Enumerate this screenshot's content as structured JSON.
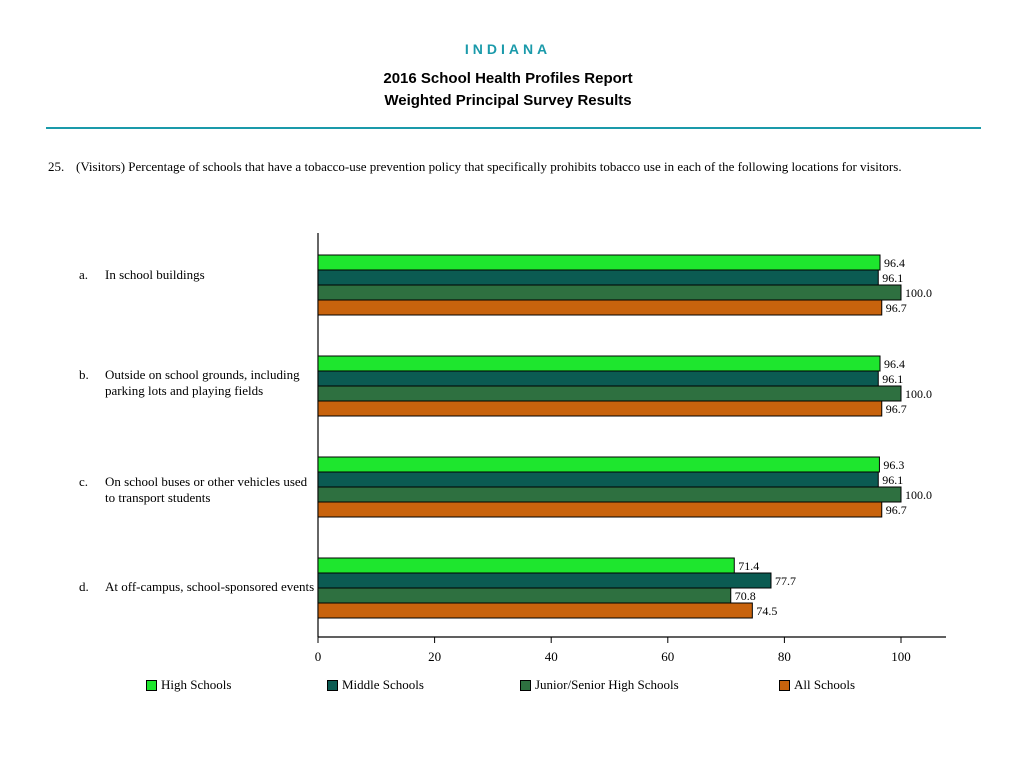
{
  "header": {
    "state": "INDIANA",
    "title_line1": "2016 School Health Profiles Report",
    "title_line2": "Weighted Principal Survey Results"
  },
  "question": {
    "number": "25.",
    "text": "(Visitors) Percentage of schools that have a tobacco-use prevention policy that specifically prohibits tobacco use in each of the following locations for visitors."
  },
  "chart_data": {
    "type": "bar",
    "orientation": "horizontal",
    "categories": [
      {
        "letter": "a.",
        "label": "In school buildings"
      },
      {
        "letter": "b.",
        "label": "Outside on school grounds, including parking lots and playing fields"
      },
      {
        "letter": "c.",
        "label": "On school buses or other vehicles used to transport students"
      },
      {
        "letter": "d.",
        "label": "At off-campus, school-sponsored events"
      }
    ],
    "series": [
      {
        "name": "High Schools",
        "color": "#1ee62e",
        "values": [
          96.4,
          96.4,
          96.3,
          71.4
        ],
        "labels": [
          "96.4",
          "96.4",
          "96.3",
          "71.4"
        ]
      },
      {
        "name": "Middle Schools",
        "color": "#0b5b52",
        "values": [
          96.1,
          96.1,
          96.1,
          77.7
        ],
        "labels": [
          "96.1",
          "96.1",
          "96.1",
          "77.7"
        ]
      },
      {
        "name": "Junior/Senior High Schools",
        "color": "#2e7040",
        "values": [
          100.0,
          100.0,
          100.0,
          70.8
        ],
        "labels": [
          "100.0",
          "100.0",
          "100.0",
          "70.8"
        ]
      },
      {
        "name": "All Schools",
        "color": "#c8630d",
        "values": [
          96.7,
          96.7,
          96.7,
          74.5
        ],
        "labels": [
          "96.7",
          "96.7",
          "96.7",
          "74.5"
        ]
      }
    ],
    "xlim": [
      0,
      108
    ],
    "xticks": [
      0,
      20,
      40,
      60,
      80,
      100
    ],
    "grid": false,
    "legend_position": "bottom"
  }
}
